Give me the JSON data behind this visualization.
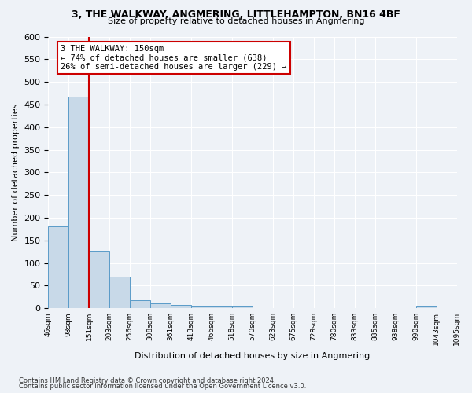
{
  "title1": "3, THE WALKWAY, ANGMERING, LITTLEHAMPTON, BN16 4BF",
  "title2": "Size of property relative to detached houses in Angmering",
  "xlabel": "Distribution of detached houses by size in Angmering",
  "ylabel": "Number of detached properties",
  "annotation_line1": "3 THE WALKWAY: 150sqm",
  "annotation_line2": "← 74% of detached houses are smaller (638)",
  "annotation_line3": "26% of semi-detached houses are larger (229) →",
  "property_size": 150,
  "bin_edges": [
    46,
    98,
    151,
    203,
    256,
    308,
    361,
    413,
    466,
    518,
    570,
    623,
    675,
    728,
    780,
    833,
    885,
    938,
    990,
    1043,
    1095
  ],
  "bar_values": [
    180,
    468,
    127,
    70,
    18,
    11,
    7,
    5,
    5,
    5,
    0,
    0,
    0,
    0,
    0,
    0,
    0,
    0,
    5,
    0
  ],
  "bar_color": "#c8d9e8",
  "bar_edge_color": "#5a9bc8",
  "red_line_x": 151,
  "annotation_box_color": "#ffffff",
  "annotation_box_edge": "#cc0000",
  "ylim": [
    0,
    600
  ],
  "yticks": [
    0,
    50,
    100,
    150,
    200,
    250,
    300,
    350,
    400,
    450,
    500,
    550,
    600
  ],
  "footnote1": "Contains HM Land Registry data © Crown copyright and database right 2024.",
  "footnote2": "Contains public sector information licensed under the Open Government Licence v3.0.",
  "bg_color": "#eef2f7",
  "plot_bg_color": "#eef2f7"
}
